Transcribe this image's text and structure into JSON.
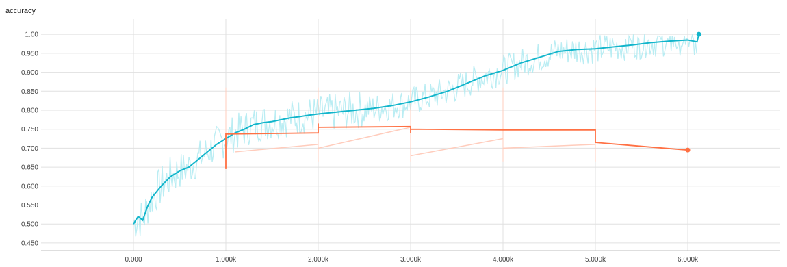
{
  "chart_data": {
    "type": "line",
    "title": "accuracy",
    "xlim": [
      -1000,
      7000
    ],
    "ylim": [
      0.43,
      1.04
    ],
    "x_ticks": [
      0,
      1000,
      2000,
      3000,
      4000,
      5000,
      6000
    ],
    "x_tick_labels": [
      "0.000",
      "1.000k",
      "2.000k",
      "3.000k",
      "4.000k",
      "5.000k",
      "6.000k"
    ],
    "y_ticks": [
      0.45,
      0.5,
      0.55,
      0.6,
      0.65,
      0.7,
      0.75,
      0.8,
      0.85,
      0.9,
      0.95,
      1.0
    ],
    "y_tick_labels": [
      "0.450",
      "0.500",
      "0.550",
      "0.600",
      "0.650",
      "0.700",
      "0.750",
      "0.800",
      "0.850",
      "0.900",
      "0.950",
      "1.00"
    ],
    "grid": true,
    "series": [
      {
        "color": "#12b5cb",
        "raw_color": "#b2ebf2",
        "x": [
          0,
          50,
          100,
          150,
          200,
          300,
          400,
          500,
          600,
          700,
          800,
          900,
          1000,
          1100,
          1200,
          1300,
          1400,
          1500,
          1600,
          1700,
          1800,
          1900,
          2000,
          2200,
          2400,
          2600,
          2800,
          3000,
          3200,
          3400,
          3600,
          3800,
          4000,
          4200,
          4400,
          4600,
          4800,
          5000,
          5200,
          5400,
          5600,
          5800,
          6000,
          6100,
          6120
        ],
        "y": [
          0.5,
          0.52,
          0.51,
          0.545,
          0.57,
          0.6,
          0.625,
          0.64,
          0.65,
          0.67,
          0.69,
          0.71,
          0.725,
          0.74,
          0.75,
          0.762,
          0.767,
          0.77,
          0.775,
          0.78,
          0.783,
          0.787,
          0.79,
          0.795,
          0.8,
          0.805,
          0.812,
          0.822,
          0.835,
          0.85,
          0.87,
          0.89,
          0.905,
          0.925,
          0.94,
          0.955,
          0.96,
          0.962,
          0.967,
          0.972,
          0.978,
          0.982,
          0.985,
          0.98,
          1.0
        ]
      },
      {
        "color": "#ff7043",
        "raw_color": "#ffccbc",
        "x": [
          1000,
          1000,
          1000,
          2000,
          2000,
          2000,
          3000,
          3000,
          3000,
          4000,
          5000,
          5000,
          6000
        ],
        "y": [
          0.645,
          0.737,
          0.737,
          0.74,
          0.765,
          0.755,
          0.757,
          0.74,
          0.75,
          0.748,
          0.748,
          0.715,
          0.695
        ],
        "raw_x": [
          1100,
          2000,
          2000,
          3000,
          3000,
          4000,
          4000,
          5000
        ],
        "raw_y": [
          0.69,
          0.71,
          0.7,
          0.755,
          0.68,
          0.725,
          0.7,
          0.71
        ]
      }
    ]
  }
}
